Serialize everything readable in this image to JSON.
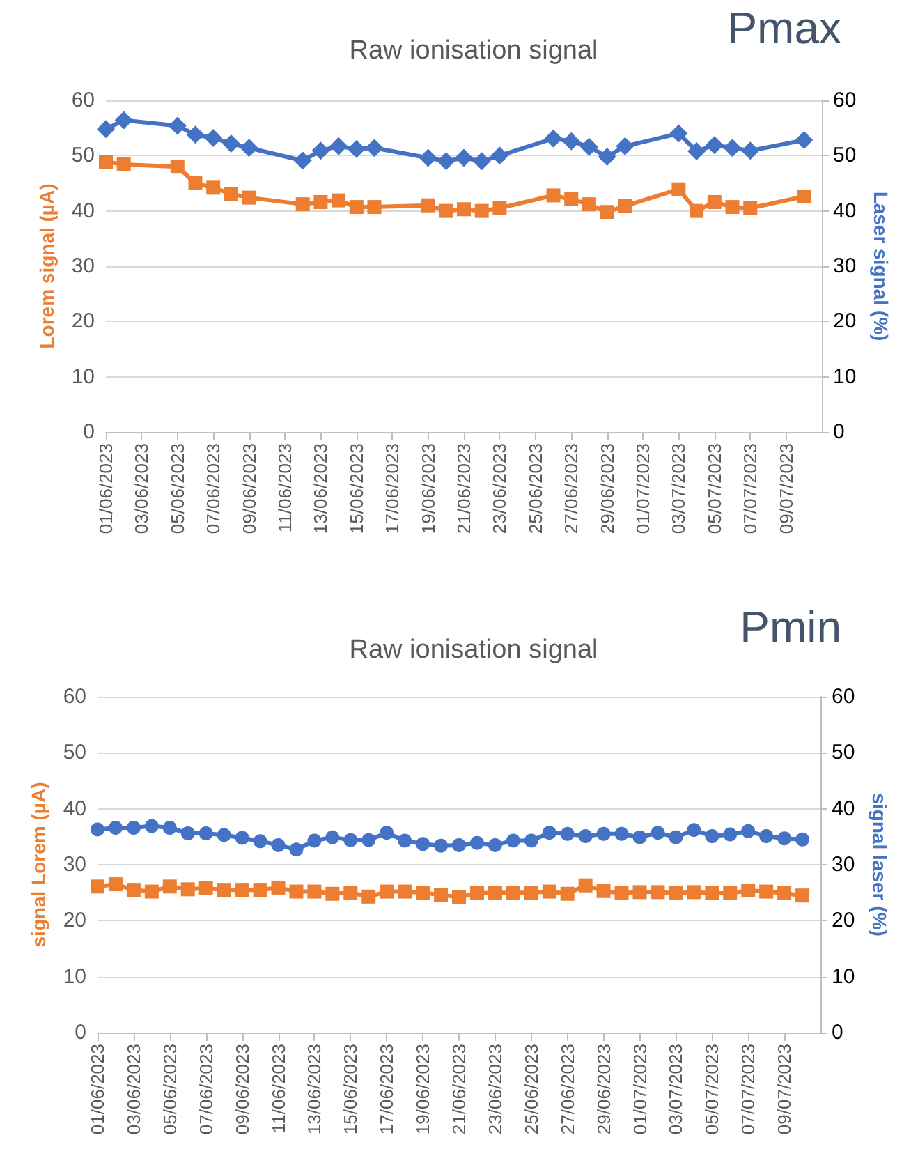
{
  "chart_data": [
    {
      "type": "line",
      "title": "Raw ionisation signal",
      "annotations": [
        "Pmax"
      ],
      "ylabel": "Lorem signal (µA)",
      "y2label": "Laser signal (%)",
      "xlim": [
        "2023-06-01",
        "2023-07-11"
      ],
      "ylim": [
        0,
        60
      ],
      "yticks": [
        0,
        10,
        20,
        30,
        40,
        50,
        60
      ],
      "y2lim": [
        0,
        60
      ],
      "y2ticks": [
        0,
        10,
        20,
        30,
        40,
        50,
        60
      ],
      "xticks": [
        {
          "value": "2023-06-01",
          "label": "01/06/2023"
        },
        {
          "value": "2023-06-03",
          "label": "03/06/2023"
        },
        {
          "value": "2023-06-05",
          "label": "05/06/2023"
        },
        {
          "value": "2023-06-07",
          "label": "07/06/2023"
        },
        {
          "value": "2023-06-09",
          "label": "09/06/2023"
        },
        {
          "value": "2023-06-11",
          "label": "11/06/2023"
        },
        {
          "value": "2023-06-13",
          "label": "13/06/2023"
        },
        {
          "value": "2023-06-15",
          "label": "15/06/2023"
        },
        {
          "value": "2023-06-17",
          "label": "17/06/2023"
        },
        {
          "value": "2023-06-19",
          "label": "19/06/2023"
        },
        {
          "value": "2023-06-21",
          "label": "21/06/2023"
        },
        {
          "value": "2023-06-23",
          "label": "23/06/2023"
        },
        {
          "value": "2023-06-25",
          "label": "25/06/2023"
        },
        {
          "value": "2023-06-27",
          "label": "27/06/2023"
        },
        {
          "value": "2023-06-29",
          "label": "29/06/2023"
        },
        {
          "value": "2023-07-01",
          "label": "01/07/2023"
        },
        {
          "value": "2023-07-03",
          "label": "03/07/2023"
        },
        {
          "value": "2023-07-05",
          "label": "05/07/2023"
        },
        {
          "value": "2023-07-07",
          "label": "07/07/2023"
        },
        {
          "value": "2023-07-09",
          "label": "09/07/2023"
        }
      ],
      "x": [
        "2023-06-01",
        "2023-06-02",
        "2023-06-05",
        "2023-06-06",
        "2023-06-07",
        "2023-06-08",
        "2023-06-09",
        "2023-06-12",
        "2023-06-13",
        "2023-06-14",
        "2023-06-15",
        "2023-06-16",
        "2023-06-19",
        "2023-06-20",
        "2023-06-21",
        "2023-06-22",
        "2023-06-23",
        "2023-06-26",
        "2023-06-27",
        "2023-06-28",
        "2023-06-29",
        "2023-06-30",
        "2023-07-03",
        "2023-07-04",
        "2023-07-05",
        "2023-07-06",
        "2023-07-07",
        "2023-07-10"
      ],
      "series": [
        {
          "color": "#ed7d31",
          "marker": "square",
          "values": [
            48.9,
            48.4,
            48.0,
            45.0,
            44.2,
            43.1,
            42.4,
            41.2,
            41.6,
            41.9,
            40.7,
            40.7,
            41.0,
            40.0,
            40.3,
            40.0,
            40.5,
            42.8,
            42.1,
            41.2,
            39.8,
            40.9,
            43.9,
            40.0,
            41.6,
            40.7,
            40.5,
            42.6
          ]
        },
        {
          "color": "#4472c4",
          "marker": "diamond",
          "axis": "y2",
          "values": [
            54.8,
            56.4,
            55.4,
            53.8,
            53.2,
            52.2,
            51.4,
            49.1,
            50.9,
            51.7,
            51.2,
            51.4,
            49.6,
            49.0,
            49.6,
            49.0,
            50.0,
            53.1,
            52.6,
            51.6,
            49.8,
            51.7,
            54.0,
            50.8,
            51.9,
            51.4,
            50.9,
            52.8
          ]
        }
      ],
      "grid": "y",
      "line_style": "solid"
    },
    {
      "type": "line",
      "title": "Raw ionisation signal",
      "annotations": [
        "Pmin"
      ],
      "ylabel": "signal Lorem (µA)",
      "y2label": "signal laser (%)",
      "xlim": [
        "2023-06-01",
        "2023-07-11"
      ],
      "ylim": [
        0,
        60
      ],
      "yticks": [
        0,
        10,
        20,
        30,
        40,
        50,
        60
      ],
      "y2lim": [
        0,
        60
      ],
      "y2ticks": [
        0,
        10,
        20,
        30,
        40,
        50,
        60
      ],
      "xticks": [
        {
          "value": "2023-06-01",
          "label": "01/06/2023"
        },
        {
          "value": "2023-06-03",
          "label": "03/06/2023"
        },
        {
          "value": "2023-06-05",
          "label": "05/06/2023"
        },
        {
          "value": "2023-06-07",
          "label": "07/06/2023"
        },
        {
          "value": "2023-06-09",
          "label": "09/06/2023"
        },
        {
          "value": "2023-06-11",
          "label": "11/06/2023"
        },
        {
          "value": "2023-06-13",
          "label": "13/06/2023"
        },
        {
          "value": "2023-06-15",
          "label": "15/06/2023"
        },
        {
          "value": "2023-06-17",
          "label": "17/06/2023"
        },
        {
          "value": "2023-06-19",
          "label": "19/06/2023"
        },
        {
          "value": "2023-06-21",
          "label": "21/06/2023"
        },
        {
          "value": "2023-06-23",
          "label": "23/06/2023"
        },
        {
          "value": "2023-06-25",
          "label": "25/06/2023"
        },
        {
          "value": "2023-06-27",
          "label": "27/06/2023"
        },
        {
          "value": "2023-06-29",
          "label": "29/06/2023"
        },
        {
          "value": "2023-07-01",
          "label": "01/07/2023"
        },
        {
          "value": "2023-07-03",
          "label": "03/07/2023"
        },
        {
          "value": "2023-07-05",
          "label": "05/07/2023"
        },
        {
          "value": "2023-07-07",
          "label": "07/07/2023"
        },
        {
          "value": "2023-07-09",
          "label": "09/07/2023"
        }
      ],
      "x": [
        "2023-06-01",
        "2023-06-02",
        "2023-06-03",
        "2023-06-04",
        "2023-06-05",
        "2023-06-06",
        "2023-06-07",
        "2023-06-08",
        "2023-06-09",
        "2023-06-10",
        "2023-06-11",
        "2023-06-12",
        "2023-06-13",
        "2023-06-14",
        "2023-06-15",
        "2023-06-16",
        "2023-06-17",
        "2023-06-18",
        "2023-06-19",
        "2023-06-20",
        "2023-06-21",
        "2023-06-22",
        "2023-06-23",
        "2023-06-24",
        "2023-06-25",
        "2023-06-26",
        "2023-06-27",
        "2023-06-28",
        "2023-06-29",
        "2023-06-30",
        "2023-07-01",
        "2023-07-02",
        "2023-07-03",
        "2023-07-04",
        "2023-07-05",
        "2023-07-06",
        "2023-07-07",
        "2023-07-08",
        "2023-07-09",
        "2023-07-10"
      ],
      "series": [
        {
          "color": "#ed7d31",
          "marker": "square",
          "values": [
            26.1,
            26.5,
            25.5,
            25.2,
            26.1,
            25.6,
            25.8,
            25.5,
            25.5,
            25.5,
            25.9,
            25.2,
            25.2,
            24.8,
            25.0,
            24.3,
            25.2,
            25.2,
            25.0,
            24.6,
            24.2,
            24.9,
            25.0,
            25.0,
            25.0,
            25.2,
            24.8,
            26.3,
            25.3,
            24.9,
            25.1,
            25.1,
            24.9,
            25.1,
            24.9,
            24.9,
            25.4,
            25.2,
            24.9,
            24.5
          ]
        },
        {
          "color": "#4472c4",
          "marker": "circle",
          "axis": "y2",
          "values": [
            36.3,
            36.6,
            36.6,
            36.9,
            36.6,
            35.6,
            35.6,
            35.3,
            34.8,
            34.2,
            33.5,
            32.7,
            34.3,
            34.9,
            34.4,
            34.4,
            35.7,
            34.3,
            33.7,
            33.4,
            33.5,
            33.9,
            33.5,
            34.3,
            34.3,
            35.7,
            35.5,
            35.1,
            35.5,
            35.5,
            34.9,
            35.7,
            34.9,
            36.2,
            35.1,
            35.4,
            36.0,
            35.1,
            34.7,
            34.5
          ]
        }
      ],
      "grid": "y",
      "line_style": "solid"
    }
  ]
}
